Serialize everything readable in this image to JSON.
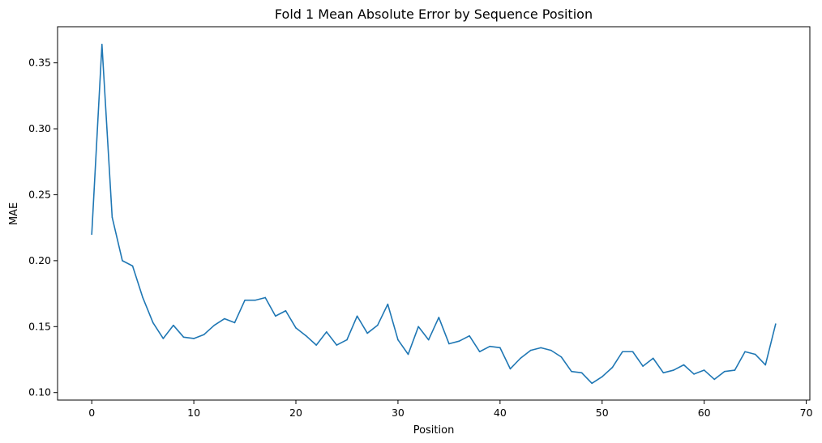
{
  "chart_data": {
    "type": "line",
    "title": "Fold 1 Mean Absolute Error by Sequence Position",
    "xlabel": "Position",
    "ylabel": "MAE",
    "xlim": [
      -3.35,
      70.35
    ],
    "ylim": [
      0.0943,
      0.3774
    ],
    "xticks": [
      0,
      10,
      20,
      30,
      40,
      50,
      60,
      70
    ],
    "yticks": [
      0.1,
      0.15,
      0.2,
      0.25,
      0.3,
      0.35
    ],
    "ytick_labels": [
      "0.10",
      "0.15",
      "0.20",
      "0.25",
      "0.30",
      "0.35"
    ],
    "grid": false,
    "color": "#1f77b4",
    "x": [
      0,
      1,
      2,
      3,
      4,
      5,
      6,
      7,
      8,
      9,
      10,
      11,
      12,
      13,
      14,
      15,
      16,
      17,
      18,
      19,
      20,
      21,
      22,
      23,
      24,
      25,
      26,
      27,
      28,
      29,
      30,
      31,
      32,
      33,
      34,
      35,
      36,
      37,
      38,
      39,
      40,
      41,
      42,
      43,
      44,
      45,
      46,
      47,
      48,
      49,
      50,
      51,
      52,
      53,
      54,
      55,
      56,
      57,
      58,
      59,
      60,
      61,
      62,
      63,
      64,
      65,
      66,
      67
    ],
    "values": [
      0.22,
      0.364,
      0.233,
      0.2,
      0.196,
      0.172,
      0.153,
      0.141,
      0.151,
      0.142,
      0.141,
      0.144,
      0.151,
      0.156,
      0.153,
      0.17,
      0.17,
      0.172,
      0.158,
      0.162,
      0.149,
      0.143,
      0.136,
      0.146,
      0.136,
      0.14,
      0.158,
      0.145,
      0.151,
      0.167,
      0.14,
      0.129,
      0.15,
      0.14,
      0.157,
      0.137,
      0.139,
      0.143,
      0.131,
      0.135,
      0.134,
      0.118,
      0.126,
      0.132,
      0.134,
      0.132,
      0.127,
      0.116,
      0.115,
      0.107,
      0.112,
      0.119,
      0.131,
      0.131,
      0.12,
      0.126,
      0.115,
      0.117,
      0.121,
      0.114,
      0.117,
      0.11,
      0.116,
      0.117,
      0.131,
      0.129,
      0.121,
      0.152
    ]
  }
}
